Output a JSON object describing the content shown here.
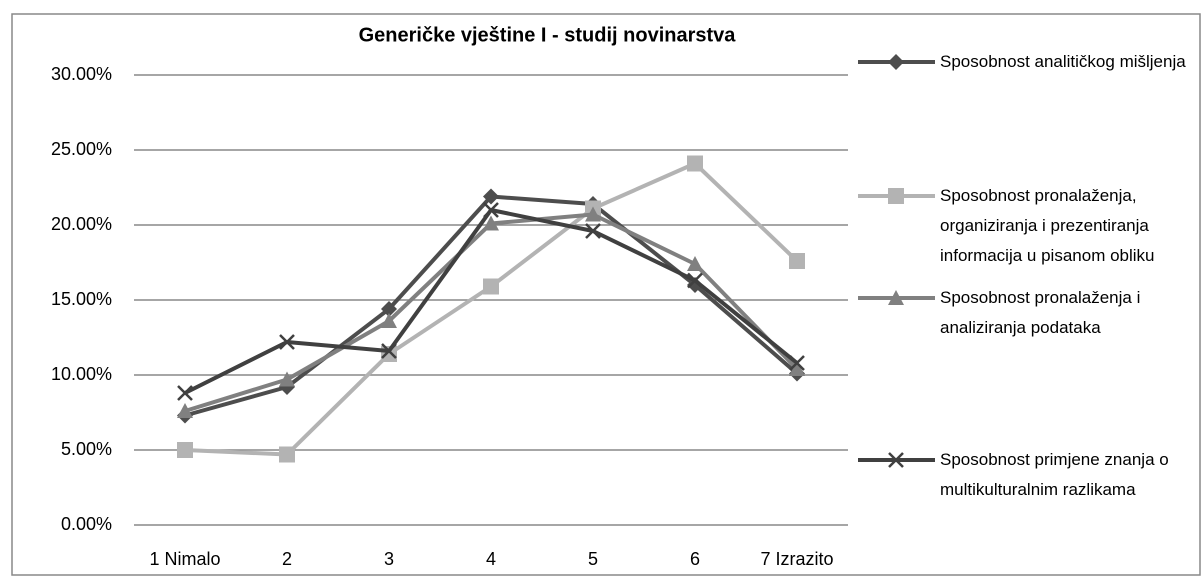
{
  "chart_data": {
    "type": "line",
    "title": "Generičke vještine I - studij novinarstva",
    "categories": [
      "1 Nimalo",
      "2",
      "3",
      "4",
      "5",
      "6",
      "7 Izrazito"
    ],
    "series": [
      {
        "name": "Sposobnost analitičkog mišljenja",
        "color": "#4d4d4d",
        "marker": "diamond",
        "values": [
          7.3,
          9.2,
          14.4,
          21.9,
          21.4,
          16.0,
          10.1
        ]
      },
      {
        "name": "Sposobnost pronalaženja, organiziranja i prezentiranja informacija u pisanom obliku",
        "color": "#b3b3b3",
        "marker": "square",
        "values": [
          5.0,
          4.7,
          11.4,
          15.9,
          21.1,
          24.1,
          17.6
        ]
      },
      {
        "name": "Sposobnost pronalaženja i analiziranja podataka",
        "color": "#808080",
        "marker": "triangle",
        "values": [
          7.6,
          9.7,
          13.6,
          20.1,
          20.7,
          17.4,
          10.4
        ]
      },
      {
        "name": "Sposobnost primjene znanja o multikulturalnim razlikama",
        "color": "#404040",
        "marker": "x",
        "values": [
          8.8,
          12.2,
          11.6,
          21.0,
          19.6,
          16.3,
          10.8
        ]
      }
    ],
    "ylim": [
      0,
      30
    ],
    "yticks": [
      {
        "value": 0,
        "label": "0.00%"
      },
      {
        "value": 5,
        "label": "5.00%"
      },
      {
        "value": 10,
        "label": "10.00%"
      },
      {
        "value": 15,
        "label": "15.00%"
      },
      {
        "value": 20,
        "label": "20.00%"
      },
      {
        "value": 25,
        "label": "25.00%"
      },
      {
        "value": 30,
        "label": "30.00%"
      }
    ],
    "grid": true,
    "legend": "right"
  }
}
